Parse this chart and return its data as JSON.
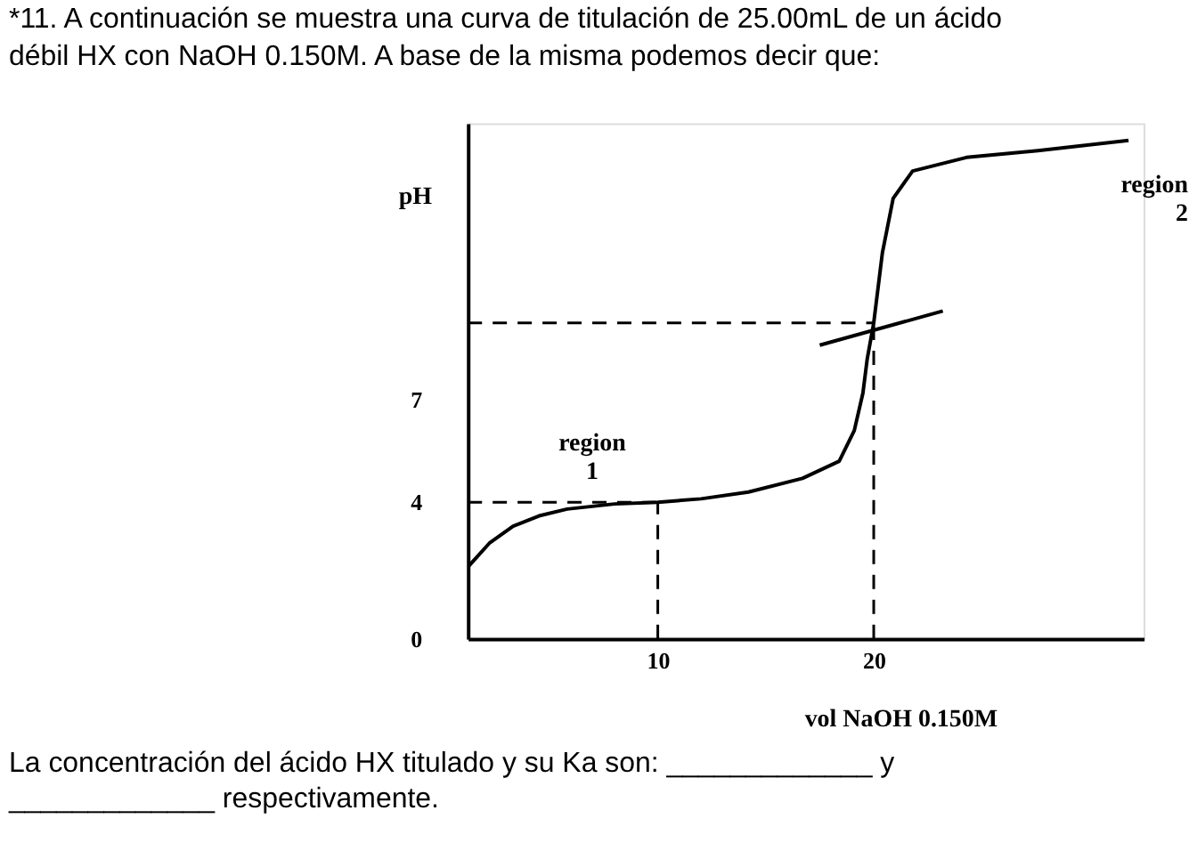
{
  "chart_data": {
    "type": "line",
    "title": "*11. A continuación se muestra una curva de titulación de 25.00mL de un ácido débil HX con NaOH 0.150M.  A base de la misma podemos decir que:",
    "xlabel": "vol NaOH 0.150M",
    "ylabel": "pH",
    "xlim": [
      1.2,
      32.5
    ],
    "ylim": [
      0,
      15.1
    ],
    "xticks": [
      10,
      20
    ],
    "yticks": [
      0,
      4,
      7
    ],
    "grid": false,
    "marker": "none",
    "series": [
      {
        "color": "#000000",
        "x": [
          1.2,
          2.2,
          3.3,
          4.5,
          5.8,
          8,
          10,
          12,
          14.2,
          16.7,
          18.4,
          19.1,
          19.5,
          19.7,
          20,
          20.4,
          20.9,
          21.8,
          24.3,
          27.6,
          31.8
        ],
        "values": [
          2.1,
          2.8,
          3.3,
          3.6,
          3.8,
          3.95,
          4.0,
          4.1,
          4.3,
          4.7,
          5.2,
          6.1,
          7.2,
          8.2,
          9.25,
          11.3,
          12.9,
          13.7,
          14.1,
          14.3,
          14.6
        ]
      },
      {
        "color": "#000000",
        "x": [
          17.5,
          23.2
        ],
        "values": [
          8.6,
          9.6
        ]
      },
      {
        "color": "#000000",
        "line_style": "dashed",
        "x": [
          1.2,
          20
        ],
        "values": [
          9.25,
          9.25
        ]
      },
      {
        "color": "#000000",
        "line_style": "dashed",
        "x": [
          1.2,
          10
        ],
        "values": [
          4,
          4
        ]
      },
      {
        "color": "#000000",
        "line_style": "dashed",
        "x": [
          10,
          10
        ],
        "values": [
          0,
          4
        ]
      },
      {
        "color": "#000000",
        "line_style": "dashed",
        "x": [
          20,
          20
        ],
        "values": [
          0,
          9.25
        ]
      }
    ],
    "annotations": [
      "region 1",
      "region 2",
      "La concentración del ácido HX titulado y su Ka son: _____________ y _____________ respectivamente."
    ]
  }
}
